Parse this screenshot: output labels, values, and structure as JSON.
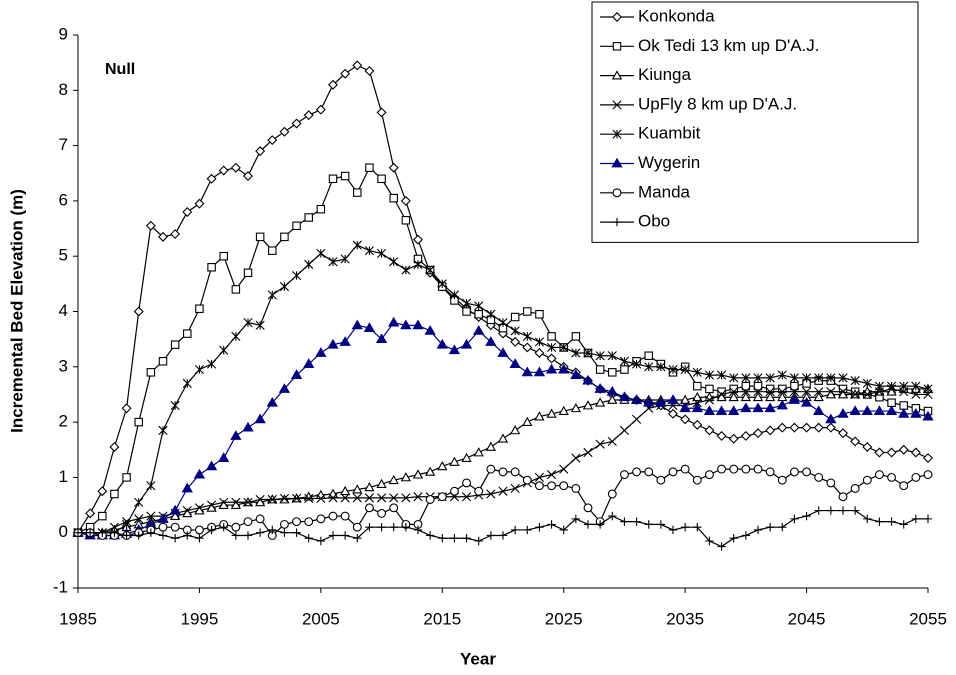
{
  "chart_data": {
    "type": "line",
    "x_label": "Year",
    "y_label": "Incremental Bed Elevation (m)",
    "annotation": "Null",
    "x": [
      1985,
      1986,
      1987,
      1988,
      1989,
      1990,
      1991,
      1992,
      1993,
      1994,
      1995,
      1996,
      1997,
      1998,
      1999,
      2000,
      2001,
      2002,
      2003,
      2004,
      2005,
      2006,
      2007,
      2008,
      2009,
      2010,
      2011,
      2012,
      2013,
      2014,
      2015,
      2016,
      2017,
      2018,
      2019,
      2020,
      2021,
      2022,
      2023,
      2024,
      2025,
      2026,
      2027,
      2028,
      2029,
      2030,
      2031,
      2032,
      2033,
      2034,
      2035,
      2036,
      2037,
      2038,
      2039,
      2040,
      2041,
      2042,
      2043,
      2044,
      2045,
      2046,
      2047,
      2048,
      2049,
      2050,
      2051,
      2052,
      2053,
      2054,
      2055
    ],
    "xlim": [
      1985,
      2055
    ],
    "xticks": [
      1985,
      1995,
      2005,
      2015,
      2025,
      2035,
      2045,
      2055
    ],
    "ylim": [
      -1,
      9
    ],
    "yticks": [
      -1,
      0,
      1,
      2,
      3,
      4,
      5,
      6,
      7,
      8,
      9
    ],
    "series": [
      {
        "name": "Konkonda",
        "color": "#000000",
        "marker": "diamond",
        "values": [
          0,
          0.35,
          0.75,
          1.55,
          2.25,
          4.0,
          5.55,
          5.35,
          5.4,
          5.8,
          5.95,
          6.4,
          6.55,
          6.6,
          6.45,
          6.9,
          7.1,
          7.25,
          7.4,
          7.55,
          7.65,
          8.1,
          8.3,
          8.45,
          8.35,
          7.6,
          6.6,
          6.0,
          5.3,
          4.7,
          4.45,
          4.25,
          4.05,
          3.9,
          3.75,
          3.6,
          3.45,
          3.35,
          3.25,
          3.15,
          3.0,
          2.9,
          2.75,
          2.6,
          2.5,
          2.45,
          2.4,
          2.35,
          2.3,
          2.15,
          2.05,
          1.95,
          1.85,
          1.75,
          1.7,
          1.75,
          1.8,
          1.85,
          1.9,
          1.9,
          1.9,
          1.9,
          1.9,
          1.8,
          1.65,
          1.55,
          1.45,
          1.45,
          1.5,
          1.45,
          1.35
        ]
      },
      {
        "name": "Ok Tedi 13 km up D'A.J.",
        "color": "#000000",
        "marker": "square",
        "values": [
          0,
          0.1,
          0.3,
          0.7,
          1.0,
          2.0,
          2.9,
          3.1,
          3.4,
          3.6,
          4.05,
          4.8,
          5.0,
          4.4,
          4.7,
          5.35,
          5.1,
          5.35,
          5.55,
          5.7,
          5.85,
          6.4,
          6.45,
          6.15,
          6.6,
          6.4,
          6.05,
          5.65,
          4.95,
          4.75,
          4.45,
          4.2,
          4.0,
          3.95,
          3.85,
          3.7,
          3.9,
          4.0,
          3.95,
          3.55,
          3.35,
          3.55,
          3.25,
          2.95,
          2.9,
          2.95,
          3.1,
          3.2,
          3.05,
          2.9,
          3.0,
          2.65,
          2.6,
          2.55,
          2.6,
          2.65,
          2.65,
          2.6,
          2.6,
          2.65,
          2.7,
          2.75,
          2.75,
          2.6,
          2.55,
          2.5,
          2.45,
          2.35,
          2.3,
          2.25,
          2.2
        ]
      },
      {
        "name": "Kiunga",
        "color": "#000000",
        "marker": "triangle",
        "values": [
          0,
          0,
          0,
          0.05,
          0.1,
          0.15,
          0.2,
          0.25,
          0.3,
          0.35,
          0.4,
          0.45,
          0.5,
          0.5,
          0.55,
          0.55,
          0.6,
          0.6,
          0.62,
          0.65,
          0.68,
          0.7,
          0.75,
          0.78,
          0.82,
          0.88,
          0.95,
          1.0,
          1.05,
          1.1,
          1.2,
          1.28,
          1.35,
          1.45,
          1.55,
          1.7,
          1.85,
          2.0,
          2.1,
          2.15,
          2.2,
          2.25,
          2.3,
          2.35,
          2.4,
          2.4,
          2.4,
          2.4,
          2.4,
          2.4,
          2.4,
          2.45,
          2.45,
          2.45,
          2.45,
          2.45,
          2.45,
          2.45,
          2.45,
          2.45,
          2.45,
          2.45,
          2.5,
          2.5,
          2.5,
          2.55,
          2.55,
          2.55,
          2.6,
          2.6,
          2.6
        ]
      },
      {
        "name": "UpFly 8 km up D'A.J.",
        "color": "#000000",
        "marker": "x",
        "values": [
          0,
          0,
          0,
          0.1,
          0.2,
          0.25,
          0.3,
          0.3,
          0.35,
          0.4,
          0.45,
          0.5,
          0.55,
          0.55,
          0.55,
          0.6,
          0.6,
          0.62,
          0.62,
          0.62,
          0.62,
          0.63,
          0.63,
          0.63,
          0.63,
          0.63,
          0.63,
          0.63,
          0.65,
          0.65,
          0.65,
          0.65,
          0.65,
          0.68,
          0.7,
          0.75,
          0.8,
          0.9,
          1.0,
          1.05,
          1.15,
          1.35,
          1.45,
          1.6,
          1.65,
          1.85,
          2.05,
          2.25,
          2.3,
          2.3,
          2.3,
          2.35,
          2.4,
          2.5,
          2.55,
          2.55,
          2.55,
          2.55,
          2.55,
          2.55,
          2.55,
          2.55,
          2.55,
          2.55,
          2.5,
          2.5,
          2.55,
          2.6,
          2.55,
          2.5,
          2.5
        ]
      },
      {
        "name": "Kuambit",
        "color": "#000000",
        "marker": "star",
        "values": [
          0,
          0,
          0,
          0,
          0.15,
          0.55,
          0.85,
          1.85,
          2.3,
          2.7,
          2.95,
          3.05,
          3.3,
          3.55,
          3.8,
          3.75,
          4.3,
          4.45,
          4.65,
          4.85,
          5.05,
          4.9,
          4.95,
          5.2,
          5.1,
          5.05,
          4.9,
          4.75,
          4.85,
          4.75,
          4.5,
          4.3,
          4.15,
          4.1,
          3.95,
          3.8,
          3.65,
          3.55,
          3.45,
          3.35,
          3.35,
          3.25,
          3.25,
          3.2,
          3.2,
          3.1,
          3.05,
          3.0,
          3.0,
          2.95,
          2.95,
          2.9,
          2.85,
          2.85,
          2.8,
          2.8,
          2.8,
          2.8,
          2.85,
          2.8,
          2.8,
          2.8,
          2.8,
          2.8,
          2.75,
          2.7,
          2.65,
          2.65,
          2.65,
          2.65,
          2.6
        ]
      },
      {
        "name": "Wygerin",
        "color": "#000080",
        "marker": "filled-triangle",
        "values": [
          0,
          -0.05,
          -0.05,
          -0.05,
          -0.02,
          0.05,
          0.15,
          0.25,
          0.4,
          0.8,
          1.05,
          1.2,
          1.35,
          1.75,
          1.9,
          2.05,
          2.35,
          2.6,
          2.85,
          3.05,
          3.25,
          3.4,
          3.45,
          3.75,
          3.7,
          3.5,
          3.8,
          3.75,
          3.75,
          3.65,
          3.4,
          3.3,
          3.4,
          3.65,
          3.45,
          3.25,
          3.05,
          2.9,
          2.9,
          2.95,
          2.95,
          2.85,
          2.75,
          2.6,
          2.55,
          2.45,
          2.4,
          2.35,
          2.35,
          2.4,
          2.25,
          2.25,
          2.2,
          2.2,
          2.2,
          2.25,
          2.25,
          2.25,
          2.3,
          2.4,
          2.35,
          2.2,
          2.05,
          2.15,
          2.2,
          2.2,
          2.2,
          2.2,
          2.15,
          2.15,
          2.1
        ]
      },
      {
        "name": "Manda",
        "color": "#000000",
        "marker": "circle",
        "values": [
          0,
          0,
          -0.05,
          -0.05,
          -0.05,
          0,
          0.05,
          0.1,
          0.1,
          0.05,
          0.05,
          0.1,
          0.15,
          0.1,
          0.2,
          0.25,
          -0.05,
          0.15,
          0.2,
          0.2,
          0.25,
          0.3,
          0.3,
          0.1,
          0.45,
          0.35,
          0.45,
          0.15,
          0.15,
          0.6,
          0.65,
          0.75,
          0.9,
          0.75,
          1.15,
          1.1,
          1.1,
          0.95,
          0.85,
          0.85,
          0.85,
          0.8,
          0.45,
          0.2,
          0.7,
          1.05,
          1.1,
          1.1,
          0.95,
          1.1,
          1.15,
          0.95,
          1.05,
          1.15,
          1.15,
          1.15,
          1.15,
          1.1,
          0.95,
          1.1,
          1.1,
          1.0,
          0.9,
          0.65,
          0.8,
          0.95,
          1.05,
          1.0,
          0.85,
          1.0,
          1.05
        ]
      },
      {
        "name": "Obo",
        "color": "#000000",
        "marker": "plus",
        "values": [
          0,
          0,
          0,
          0,
          -0.05,
          -0.05,
          0,
          -0.05,
          -0.1,
          -0.05,
          -0.1,
          0.05,
          0.1,
          -0.05,
          -0.05,
          0,
          0.05,
          0,
          0,
          -0.1,
          -0.15,
          -0.05,
          -0.05,
          -0.1,
          0.1,
          0.1,
          0.1,
          0.1,
          0.05,
          -0.05,
          -0.1,
          -0.1,
          -0.1,
          -0.15,
          -0.05,
          -0.05,
          0.05,
          0.05,
          0.1,
          0.15,
          0.05,
          0.25,
          0.15,
          0.15,
          0.3,
          0.2,
          0.2,
          0.15,
          0.15,
          0.05,
          0.1,
          0.1,
          -0.15,
          -0.25,
          -0.1,
          -0.05,
          0.05,
          0.1,
          0.1,
          0.25,
          0.3,
          0.4,
          0.4,
          0.4,
          0.4,
          0.25,
          0.2,
          0.2,
          0.15,
          0.25,
          0.25
        ]
      }
    ],
    "legend": "top-right"
  }
}
